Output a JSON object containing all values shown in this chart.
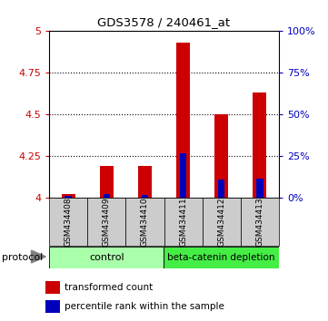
{
  "title": "GDS3578 / 240461_at",
  "samples": [
    "GSM434408",
    "GSM434409",
    "GSM434410",
    "GSM434411",
    "GSM434412",
    "GSM434413"
  ],
  "transformed_count": [
    4.02,
    4.19,
    4.19,
    4.93,
    4.5,
    4.63
  ],
  "percentile_rank_mapped": [
    4.012,
    4.018,
    4.014,
    4.265,
    4.105,
    4.115
  ],
  "ylim_left": [
    4.0,
    5.0
  ],
  "left_yticks": [
    4.0,
    4.25,
    4.5,
    4.75,
    5.0
  ],
  "left_yticklabels": [
    "4",
    "4.25",
    "4.5",
    "4.75",
    "5"
  ],
  "right_yticks_pct": [
    0,
    25,
    50,
    75,
    100
  ],
  "right_yticklabels": [
    "0%",
    "25%",
    "50%",
    "75%",
    "100%"
  ],
  "bar_width": 0.35,
  "blue_bar_width": 0.18,
  "red_color": "#cc0000",
  "blue_color": "#0000bb",
  "grid_color": "#888888",
  "bg_sample_row": "#cccccc",
  "bar_base": 4.0,
  "ctrl_color": "#aaffaa",
  "depl_color": "#44ee44",
  "protocol_label": "protocol",
  "legend_red": "transformed count",
  "legend_blue": "percentile rank within the sample",
  "figsize": [
    3.61,
    3.54
  ],
  "dpi": 100
}
